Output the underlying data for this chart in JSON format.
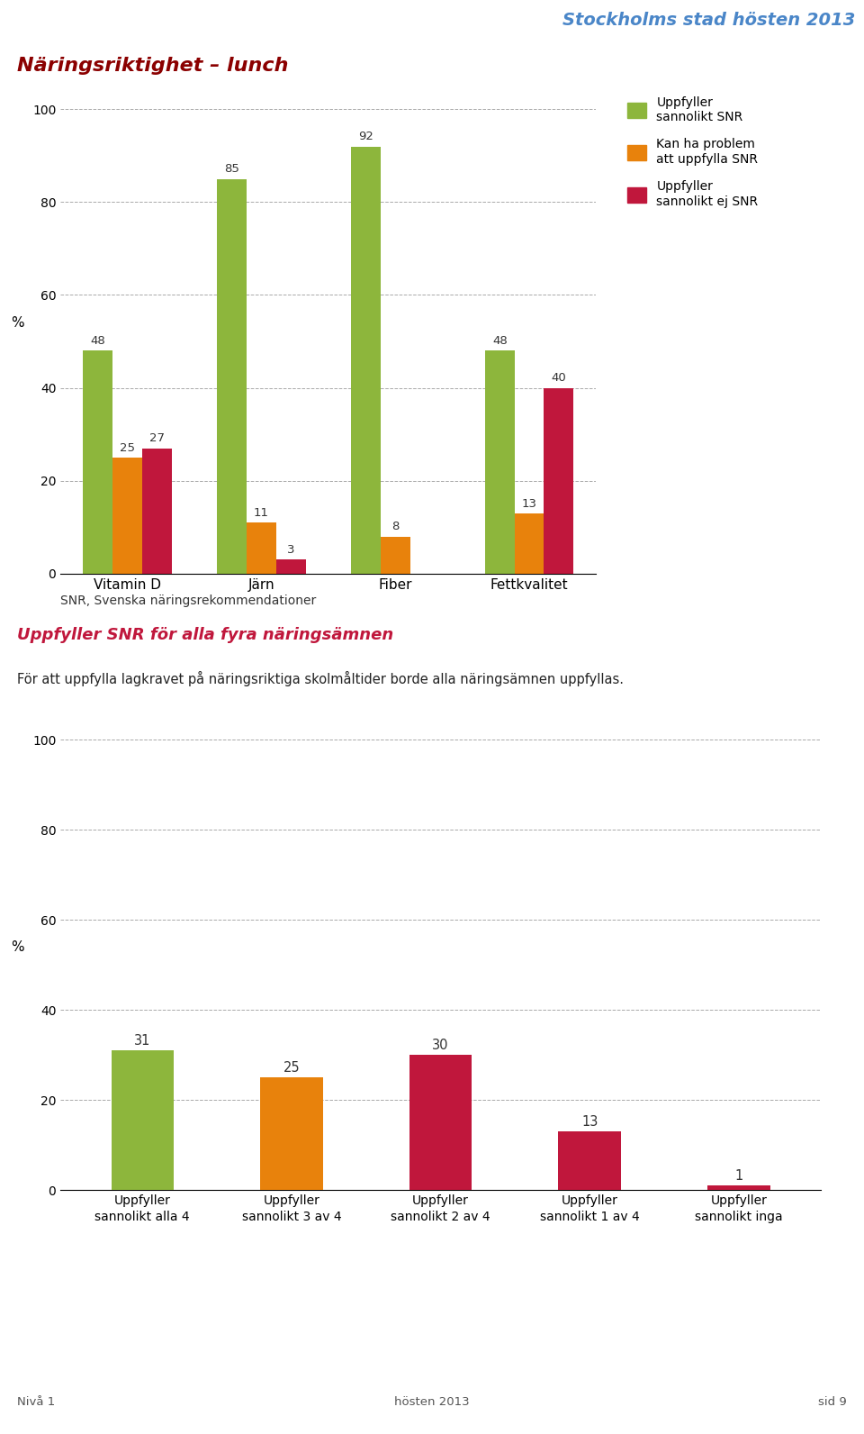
{
  "header_text": "Stockholms stad hösten 2013",
  "header_color": "#4a86c8",
  "page_title": "Näringsriktighet – lunch",
  "page_title_color": "#8B0000",
  "chart1": {
    "categories": [
      "Vitamin D",
      "Järn",
      "Fiber",
      "Fettkvalitet"
    ],
    "series": [
      {
        "label": "Uppfyller\nsannolikt SNR",
        "color": "#8db63c",
        "values": [
          48,
          85,
          92,
          48
        ]
      },
      {
        "label": "Kan ha problem\natt uppfylla SNR",
        "color": "#e8820c",
        "values": [
          25,
          11,
          8,
          13
        ]
      },
      {
        "label": "Uppfyller\nsannolikt ej SNR",
        "color": "#c0173c",
        "values": [
          27,
          3,
          0,
          40
        ]
      }
    ],
    "ylabel": "%",
    "ylim": [
      0,
      105
    ],
    "yticks": [
      0,
      20,
      40,
      60,
      80,
      100
    ]
  },
  "snr_note": "SNR, Svenska näringsrekommendationer",
  "section2_title": "Uppfyller SNR för alla fyra näringsämnen",
  "section2_title_color": "#c0173c",
  "section2_subtitle": "För att uppfylla lagkravet på näringsriktiga skolmåltider borde alla näringsämnen uppfyllas.",
  "chart2": {
    "categories": [
      "Uppfyller\nsannolikt alla 4",
      "Uppfyller\nsannolikt 3 av 4",
      "Uppfyller\nsannolikt 2 av 4",
      "Uppfyller\nsannolikt 1 av 4",
      "Uppfyller\nsannolikt inga"
    ],
    "values": [
      31,
      25,
      30,
      13,
      1
    ],
    "colors": [
      "#8db63c",
      "#e8820c",
      "#c0173c",
      "#c0173c",
      "#c0173c"
    ],
    "ylabel": "%",
    "ylim": [
      0,
      105
    ],
    "yticks": [
      0,
      20,
      40,
      60,
      80,
      100
    ]
  },
  "footer_left": "Nivå 1",
  "footer_center": "hösten 2013",
  "footer_right": "sid 9"
}
